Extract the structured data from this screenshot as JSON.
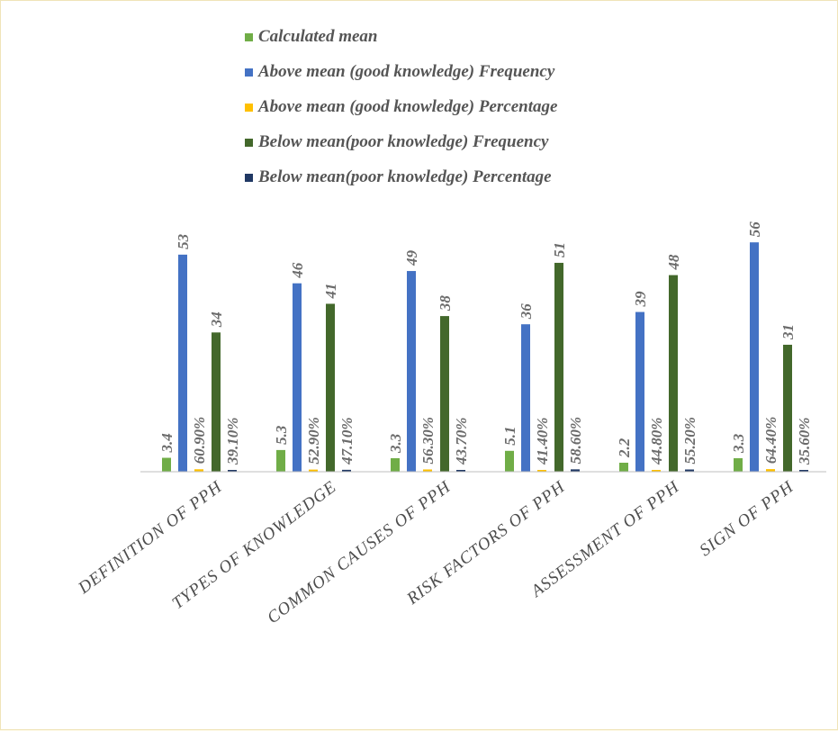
{
  "chart_data": {
    "type": "bar",
    "categories": [
      "DEFINITION OF PPH",
      "TYPES OF KNOWLEDGE",
      "COMMON CAUSES OF PPH",
      "RISK FACTORS OF PPH",
      "ASSESSMENT OF PPH",
      "SIGN OF PPH"
    ],
    "series": [
      {
        "name": "Calculated mean",
        "color": "#70ad47",
        "values": [
          3.4,
          5.3,
          3.3,
          5.1,
          2.2,
          3.3
        ],
        "labels": [
          "3.4",
          "5.3",
          "3.3",
          "5.1",
          "2.2",
          "3.3"
        ]
      },
      {
        "name": "Above mean (good knowledge) Frequency",
        "color": "#4472c4",
        "values": [
          53,
          46,
          49,
          36,
          39,
          56
        ],
        "labels": [
          "53",
          "46",
          "49",
          "36",
          "39",
          "56"
        ]
      },
      {
        "name": "Above mean (good knowledge) Percentage",
        "color": "#ffc000",
        "values": [
          0.609,
          0.529,
          0.563,
          0.414,
          0.448,
          0.644
        ],
        "labels": [
          "60.90%",
          "52.90%",
          "56.30%",
          "41.40%",
          "44.80%",
          "64.40%"
        ]
      },
      {
        "name": "Below mean(poor knowledge) Frequency",
        "color": "#43682b",
        "values": [
          34,
          41,
          38,
          51,
          48,
          31
        ],
        "labels": [
          "34",
          "41",
          "38",
          "51",
          "48",
          "31"
        ]
      },
      {
        "name": "Below mean(poor knowledge) Percentage",
        "color": "#203864",
        "values": [
          0.391,
          0.471,
          0.437,
          0.586,
          0.552,
          0.356
        ],
        "labels": [
          "39.10%",
          "47.10%",
          "43.70%",
          "58.60%",
          "55.20%",
          "35.60%"
        ]
      }
    ],
    "ylim": [
      0,
      56
    ],
    "grid": false,
    "legend": "top"
  }
}
